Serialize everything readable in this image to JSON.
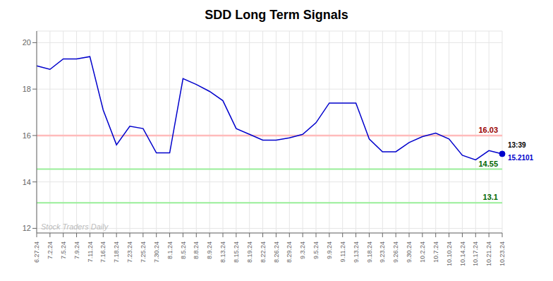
{
  "chart_data": {
    "type": "line",
    "title": "SDD Long Term Signals",
    "categories": [
      "6.27.24",
      "7.2.24",
      "7.5.24",
      "7.9.24",
      "7.11.24",
      "7.16.24",
      "7.18.24",
      "7.23.24",
      "7.25.24",
      "7.30.24",
      "8.1.24",
      "8.5.24",
      "8.8.24",
      "8.9.24",
      "8.13.24",
      "8.15.24",
      "8.19.24",
      "8.22.24",
      "8.26.24",
      "8.29.24",
      "9.3.24",
      "9.5.24",
      "9.9.24",
      "9.11.24",
      "9.13.24",
      "9.18.24",
      "9.23.24",
      "9.26.24",
      "9.30.24",
      "10.2.24",
      "10.7.24",
      "10.10.24",
      "10.14.24",
      "10.17.24",
      "10.21.24",
      "10.23.24"
    ],
    "values": [
      19.0,
      18.85,
      19.3,
      19.3,
      19.4,
      17.1,
      15.6,
      16.4,
      16.3,
      15.25,
      15.25,
      18.45,
      18.2,
      17.9,
      17.5,
      16.3,
      16.05,
      15.8,
      15.8,
      15.9,
      16.05,
      16.55,
      17.4,
      17.4,
      17.4,
      15.85,
      15.3,
      15.3,
      15.7,
      15.95,
      16.1,
      15.85,
      15.15,
      14.95,
      15.35,
      15.21
    ],
    "color": "#0000cc",
    "ylim": [
      11.8,
      20.5
    ],
    "yticks": [
      12,
      14,
      16,
      18,
      20
    ],
    "grid": true,
    "reference_lines": [
      {
        "value": 16.0,
        "color": "#ffbbbb",
        "label": "16.03",
        "label_color": "#990000"
      },
      {
        "value": 14.55,
        "color": "#99ee99",
        "label": "14.55",
        "label_color": "#006600"
      },
      {
        "value": 13.1,
        "color": "#99ee99",
        "label": "13.1",
        "label_color": "#006600"
      }
    ],
    "last_point": {
      "color": "#0000cc",
      "labels": [
        {
          "text": "13:39",
          "color": "#000000"
        },
        {
          "text": "15.2101",
          "color": "#0000cc"
        }
      ]
    },
    "watermark": {
      "text": "Stock Traders Daily",
      "color": "#bbbbbb"
    }
  }
}
